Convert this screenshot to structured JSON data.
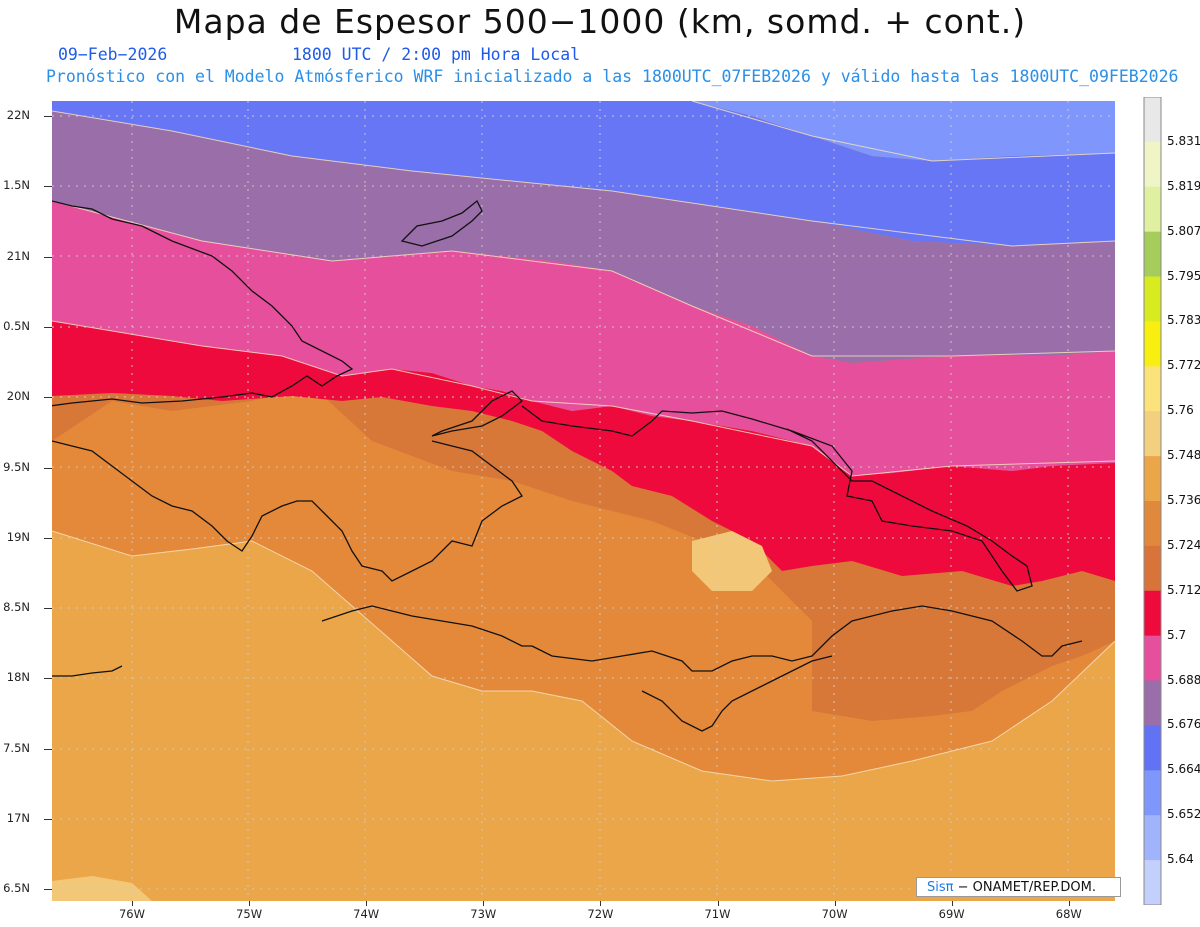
{
  "title": "Mapa de Espesor 500−1000 (km, somd. + cont.)",
  "date": "09−Feb−2026",
  "valid_time": "1800 UTC / 2:00 pm Hora Local",
  "description": "Pronóstico con el Modelo Atmósferico WRF inicializado a las 1800UTC_07FEB2026 y válido hasta las  1800UTC_09FEB2026",
  "credit": {
    "brand": "Sisπ",
    "text": " − ONAMET/REP.DOM."
  },
  "lat_labels": [
    "22N",
    "1.5N",
    "21N",
    "0.5N",
    "20N",
    "9.5N",
    "19N",
    "8.5N",
    "18N",
    "7.5N",
    "17N",
    "6.5N"
  ],
  "lon_labels": [
    "76W",
    "75W",
    "74W",
    "73W",
    "72W",
    "71W",
    "70W",
    "69W",
    "68W"
  ],
  "colorbar": {
    "labels": [
      "5.831",
      "5.819",
      "5.807",
      "5.795",
      "5.783",
      "5.772",
      "5.76",
      "5.748",
      "5.736",
      "5.724",
      "5.712",
      "5.7",
      "5.688",
      "5.676",
      "5.664",
      "5.652",
      "5.64"
    ],
    "colors": [
      "#e8e8e8",
      "#f0f5c8",
      "#dff0a0",
      "#a6cc5c",
      "#d8ea20",
      "#f8ef10",
      "#fce27a",
      "#f3cf80",
      "#eba64a",
      "#e0883c",
      "#d8733a",
      "#ee0a3c",
      "#e64f9c",
      "#9a6ea8",
      "#6272f5",
      "#7f96fc",
      "#a0b4fc",
      "#c4d0fc"
    ]
  },
  "bands": {
    "b5664": "#6676f4",
    "b5652": "#7f97fc",
    "b5676": "#9a6ea8",
    "b5688": "#e64f9c",
    "b5700": "#ee0a3c",
    "b5712": "#d87838",
    "b5724": "#e4893a",
    "b5736": "#eba64a",
    "b5748": "#f2c878"
  }
}
